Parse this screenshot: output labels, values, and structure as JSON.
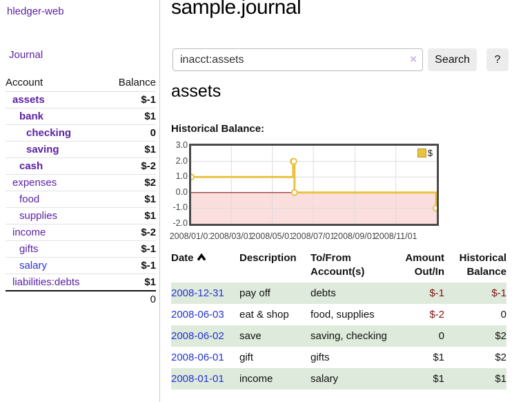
{
  "app": {
    "brand": "hledger-web",
    "nav_journal": "Journal"
  },
  "sidebar": {
    "headers": {
      "account": "Account",
      "balance": "Balance"
    },
    "accounts": [
      {
        "name": "assets",
        "balance": "$-1",
        "indent": 0,
        "bold": true,
        "balance_class": "neg",
        "link_class": "purple"
      },
      {
        "name": "bank",
        "balance": "$1",
        "indent": 1,
        "bold": true,
        "balance_class": "",
        "link_class": "purple"
      },
      {
        "name": "checking",
        "balance": "0",
        "indent": 2,
        "bold": true,
        "balance_class": "",
        "link_class": "purple"
      },
      {
        "name": "saving",
        "balance": "$1",
        "indent": 2,
        "bold": true,
        "balance_class": "",
        "link_class": "purple"
      },
      {
        "name": "cash",
        "balance": "$-2",
        "indent": 1,
        "bold": true,
        "balance_class": "neg",
        "link_class": "purple"
      },
      {
        "name": "expenses",
        "balance": "$2",
        "indent": 0,
        "bold": false,
        "balance_class": "",
        "link_class": "purple"
      },
      {
        "name": "food",
        "balance": "$1",
        "indent": 1,
        "bold": false,
        "balance_class": "",
        "link_class": "purple"
      },
      {
        "name": "supplies",
        "balance": "$1",
        "indent": 1,
        "bold": false,
        "balance_class": "",
        "link_class": "purple"
      },
      {
        "name": "income",
        "balance": "$-2",
        "indent": 0,
        "bold": false,
        "balance_class": "dimneg",
        "link_class": "purple"
      },
      {
        "name": "gifts",
        "balance": "$-1",
        "indent": 1,
        "bold": false,
        "balance_class": "dimneg",
        "link_class": "purple"
      },
      {
        "name": "salary",
        "balance": "$-1",
        "indent": 1,
        "bold": false,
        "balance_class": "dimneg",
        "link_class": "blue"
      },
      {
        "name": "liabilities:debts",
        "balance": "$1",
        "indent": 0,
        "bold": false,
        "balance_class": "",
        "link_class": "purple"
      }
    ],
    "total": "0"
  },
  "header": {
    "title": "sample.journal"
  },
  "search": {
    "value": "inacct:assets",
    "clear_icon": "×",
    "button": "Search",
    "help_button": "?"
  },
  "account_page": {
    "heading": "assets",
    "chart_label": "Historical Balance:"
  },
  "chart_data": {
    "type": "line",
    "step": true,
    "title": "Historical Balance:",
    "series": [
      {
        "name": "$",
        "color": "#e9c240",
        "x": [
          "2008-01-01",
          "2008-06-01",
          "2008-06-02",
          "2008-06-03",
          "2008-12-31"
        ],
        "y": [
          1.0,
          2.0,
          2.0,
          0.0,
          -1.0
        ]
      }
    ],
    "xrange": [
      "2008-01-01",
      "2009-01-01"
    ],
    "ylim": [
      -2.0,
      3.0
    ],
    "yticks": [
      3.0,
      2.0,
      1.0,
      0.0,
      -1.0,
      -2.0
    ],
    "xticks": [
      "2008/01/01",
      "2008/03/01",
      "2008/05/01",
      "2008/07/01",
      "2008/09/01",
      "2008/11/01"
    ],
    "legend": {
      "position": "top-right",
      "label": "$"
    },
    "grid": true,
    "negative_region_fill": "#fbdfdf",
    "zero_line_color": "#8c1a1a",
    "grid_color": "#dcdcdc"
  },
  "register": {
    "headers": {
      "date": "Date",
      "description": "Description",
      "accounts": "To/From Account(s)",
      "amount": "Amount Out/In",
      "balance": "Historical Balance"
    },
    "rows": [
      {
        "date": "2008-12-31",
        "description": "pay off",
        "accounts": "debts",
        "amount": "$-1",
        "amount_class": "neg",
        "balance": "$-1",
        "balance_class": "neg"
      },
      {
        "date": "2008-06-03",
        "description": "eat & shop",
        "accounts": "food, supplies",
        "amount": "$-2",
        "amount_class": "neg",
        "balance": "0",
        "balance_class": ""
      },
      {
        "date": "2008-06-02",
        "description": "save",
        "accounts": "saving, checking",
        "amount": "0",
        "amount_class": "",
        "balance": "$2",
        "balance_class": ""
      },
      {
        "date": "2008-06-01",
        "description": "gift",
        "accounts": "gifts",
        "amount": "$1",
        "amount_class": "",
        "balance": "$2",
        "balance_class": ""
      },
      {
        "date": "2008-01-01",
        "description": "income",
        "accounts": "salary",
        "amount": "$1",
        "amount_class": "",
        "balance": "$1",
        "balance_class": ""
      }
    ]
  }
}
